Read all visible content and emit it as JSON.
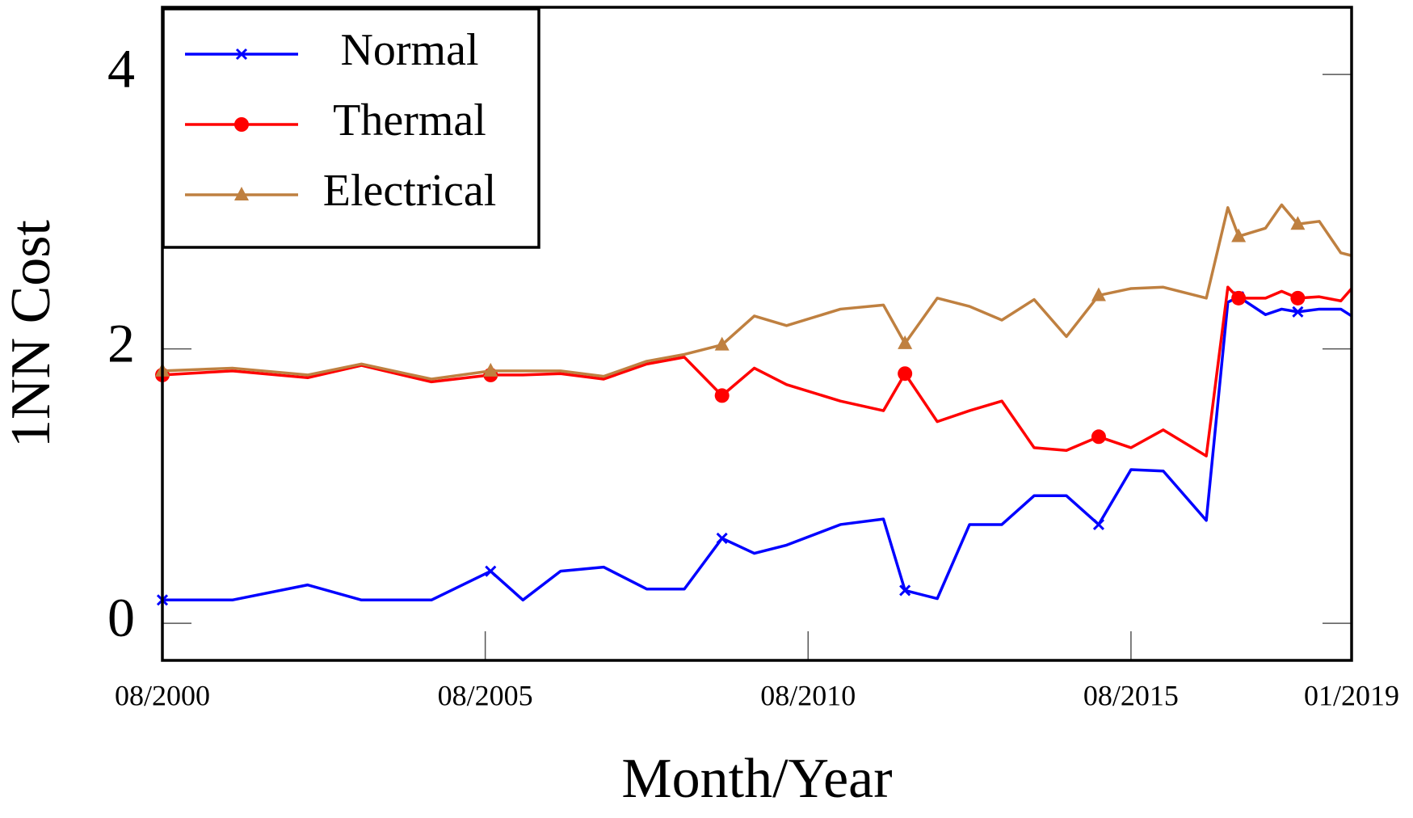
{
  "chart_data": {
    "type": "line",
    "x_label": "Month/Year",
    "y_label": "1NN Cost",
    "x": [
      "08/2000",
      "09/2001",
      "11/2002",
      "09/2003",
      "10/2004",
      "09/2005",
      "03/2006",
      "10/2006",
      "06/2007",
      "02/2008",
      "09/2008",
      "04/2009",
      "10/2009",
      "04/2010",
      "02/2011",
      "10/2011",
      "02/2012",
      "08/2012",
      "02/2013",
      "08/2013",
      "02/2014",
      "08/2014",
      "02/2015",
      "08/2015",
      "02/2016",
      "10/2016",
      "02/2017",
      "04/2017",
      "09/2017",
      "12/2017",
      "03/2018",
      "07/2018",
      "11/2018",
      "01/2019"
    ],
    "xlim": [
      "08/2000",
      "01/2019"
    ],
    "xticks": [
      "08/2000",
      "08/2005",
      "08/2010",
      "08/2015",
      "01/2019"
    ],
    "ylim": [
      -0.27,
      4.49
    ],
    "yticks": [
      0,
      2,
      4
    ],
    "marker_indices": [
      0,
      5,
      11,
      16,
      22,
      27,
      30
    ],
    "legend": "upper left",
    "series": [
      {
        "name": "Normal",
        "color": "#0000ff",
        "marker": "x",
        "values": [
          0.17,
          0.17,
          0.28,
          0.17,
          0.17,
          0.38,
          0.17,
          0.38,
          0.41,
          0.25,
          0.25,
          0.62,
          0.51,
          0.57,
          0.72,
          0.76,
          0.24,
          0.18,
          0.72,
          0.72,
          0.93,
          0.93,
          0.72,
          1.12,
          1.11,
          0.75,
          2.34,
          2.38,
          2.25,
          2.29,
          2.27,
          2.29,
          2.29,
          2.24
        ]
      },
      {
        "name": "Thermal",
        "color": "#ff0000",
        "marker": "circle",
        "values": [
          1.81,
          1.84,
          1.79,
          1.88,
          1.76,
          1.81,
          1.81,
          1.82,
          1.78,
          1.89,
          1.94,
          1.66,
          1.86,
          1.74,
          1.62,
          1.55,
          1.82,
          1.47,
          1.55,
          1.62,
          1.28,
          1.26,
          1.36,
          1.28,
          1.41,
          1.22,
          2.45,
          2.37,
          2.37,
          2.42,
          2.37,
          2.38,
          2.35,
          2.44
        ]
      },
      {
        "name": "Electrical",
        "color": "#bf8040",
        "marker": "triangle",
        "values": [
          1.84,
          1.86,
          1.81,
          1.89,
          1.78,
          1.84,
          1.84,
          1.84,
          1.8,
          1.91,
          1.96,
          2.03,
          2.24,
          2.17,
          2.29,
          2.32,
          2.04,
          2.37,
          2.31,
          2.21,
          2.36,
          2.09,
          2.39,
          2.44,
          2.45,
          2.37,
          3.03,
          2.82,
          2.88,
          3.05,
          2.91,
          2.93,
          2.7,
          2.68
        ]
      }
    ]
  }
}
